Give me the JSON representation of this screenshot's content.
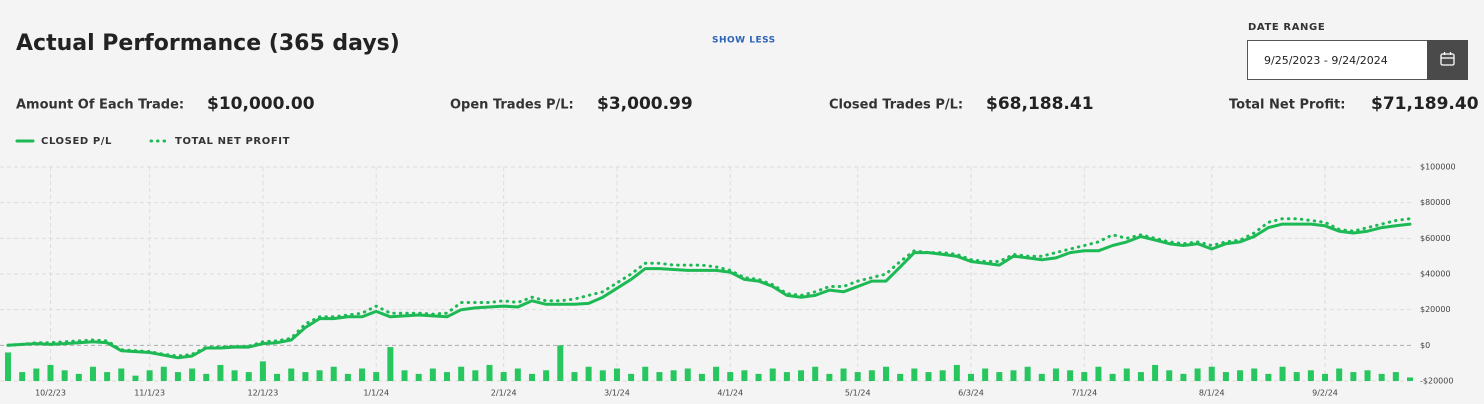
{
  "header": {
    "title": "Actual Performance (365 days)",
    "toggle": "SHOW LESS",
    "date_range_label": "DATE RANGE",
    "date_range": "9/25/2023 - 9/24/2024"
  },
  "stats": [
    {
      "label": "Amount Of Each Trade:",
      "value": "$10,000.00"
    },
    {
      "label": "Open Trades P/L:",
      "value": "$3,000.99"
    },
    {
      "label": "Closed Trades P/L:",
      "value": "$68,188.41"
    },
    {
      "label": "Total Net Profit:",
      "value": "$71,189.40"
    }
  ],
  "chart_data": {
    "type": "line",
    "grid": true,
    "categories": [
      null,
      null,
      null,
      "10/2/23",
      null,
      null,
      null,
      null,
      null,
      null,
      "11/1/23",
      null,
      null,
      null,
      null,
      null,
      null,
      null,
      "12/1/23",
      null,
      null,
      null,
      null,
      null,
      null,
      null,
      "1/1/24",
      null,
      null,
      null,
      null,
      null,
      null,
      null,
      null,
      "2/1/24",
      null,
      null,
      null,
      null,
      null,
      null,
      null,
      "3/1/24",
      null,
      null,
      null,
      null,
      null,
      null,
      null,
      "4/1/24",
      null,
      null,
      null,
      null,
      null,
      null,
      null,
      null,
      "5/1/24",
      null,
      null,
      null,
      null,
      null,
      null,
      null,
      "6/3/24",
      null,
      null,
      null,
      null,
      null,
      null,
      null,
      "7/1/24",
      null,
      null,
      null,
      null,
      null,
      null,
      null,
      null,
      "8/1/24",
      null,
      null,
      null,
      null,
      null,
      null,
      null,
      "9/2/24",
      null,
      null,
      null,
      null,
      null,
      null
    ],
    "ylim": [
      -20000,
      100000
    ],
    "yticks": [
      {
        "value": -20000,
        "label": "-$20000"
      },
      {
        "value": 0,
        "label": "$0"
      },
      {
        "value": 20000,
        "label": "$20000"
      },
      {
        "value": 40000,
        "label": "$40000"
      },
      {
        "value": 60000,
        "label": "$60000"
      },
      {
        "value": 80000,
        "label": "$80000"
      },
      {
        "value": 100000,
        "label": "$100000"
      }
    ],
    "series": [
      {
        "name": "CLOSED P/L",
        "color": "#1db954",
        "line_style": "solid",
        "values": [
          0,
          500,
          1000,
          500,
          1000,
          1500,
          2000,
          1500,
          -3000,
          -3500,
          -4000,
          -5500,
          -7000,
          -6000,
          -1500,
          -1500,
          -1000,
          -1000,
          1000,
          1500,
          3000,
          10000,
          15000,
          15000,
          16000,
          16000,
          19000,
          16000,
          16500,
          17000,
          16500,
          16000,
          20000,
          21000,
          21500,
          22000,
          21500,
          25000,
          23000,
          23000,
          23000,
          23500,
          27000,
          32000,
          37000,
          43000,
          43000,
          42500,
          42000,
          42000,
          42000,
          41000,
          37000,
          36000,
          33000,
          28000,
          27000,
          28000,
          31000,
          30000,
          33000,
          36000,
          36000,
          44000,
          52000,
          52000,
          51000,
          50000,
          47000,
          46000,
          45000,
          50000,
          49000,
          48000,
          49000,
          52000,
          53000,
          53000,
          56000,
          58000,
          61000,
          59000,
          57000,
          56000,
          57000,
          54000,
          57000,
          58000,
          61000,
          66000,
          68000,
          68000,
          68000,
          67000,
          64000,
          63000,
          64000,
          66000,
          67000,
          68000
        ]
      },
      {
        "name": "TOTAL NET PROFIT",
        "color": "#1db954",
        "line_style": "dotted",
        "values": [
          0,
          500,
          1500,
          1500,
          2000,
          2500,
          3000,
          2500,
          -2500,
          -3000,
          -3500,
          -5000,
          -6000,
          -5000,
          -1000,
          -1000,
          -500,
          -500,
          2000,
          2500,
          4000,
          12000,
          16000,
          16000,
          17000,
          18000,
          22000,
          18000,
          18000,
          18000,
          17500,
          18000,
          24000,
          24000,
          24000,
          25000,
          24000,
          27000,
          25000,
          25000,
          26000,
          28000,
          30000,
          35000,
          40000,
          46000,
          46000,
          45000,
          45000,
          45000,
          44000,
          42000,
          38000,
          37000,
          34000,
          29000,
          28000,
          30000,
          33000,
          33000,
          36000,
          38000,
          40000,
          47000,
          53000,
          52000,
          52000,
          51000,
          48000,
          47000,
          47000,
          51000,
          50000,
          50000,
          52000,
          54000,
          56000,
          58000,
          62000,
          60000,
          62000,
          60000,
          58000,
          57000,
          58000,
          56000,
          58000,
          59000,
          63000,
          69000,
          71000,
          71000,
          70000,
          69000,
          65000,
          64000,
          66000,
          68000,
          70000,
          71000
        ]
      },
      {
        "type": "bar",
        "color": "#27c65f",
        "values": [
          -4000,
          -15000,
          -13000,
          -11000,
          -14000,
          -16000,
          -12000,
          -15000,
          -13000,
          -17000,
          -14000,
          -12000,
          -15000,
          -13000,
          -16000,
          -11000,
          -14000,
          -15000,
          -9000,
          -16000,
          -13000,
          -15000,
          -14000,
          -12000,
          -16000,
          -13000,
          -15000,
          -1000,
          -14000,
          -16000,
          -13000,
          -15000,
          -12000,
          -14000,
          -11000,
          -15000,
          -13000,
          -16000,
          -14000,
          0,
          -15000,
          -12000,
          -14000,
          -13000,
          -16000,
          -12000,
          -15000,
          -14000,
          -13000,
          -16000,
          -12000,
          -15000,
          -14000,
          -16000,
          -13000,
          -15000,
          -14000,
          -12000,
          -16000,
          -13000,
          -15000,
          -14000,
          -12000,
          -16000,
          -13000,
          -15000,
          -14000,
          -11000,
          -16000,
          -13000,
          -15000,
          -14000,
          -12000,
          -16000,
          -13000,
          -14000,
          -15000,
          -12000,
          -16000,
          -13000,
          -15000,
          -11000,
          -14000,
          -16000,
          -13000,
          -12000,
          -15000,
          -14000,
          -13000,
          -16000,
          -12000,
          -15000,
          -14000,
          -16000,
          -13000,
          -15000,
          -14000,
          -16000,
          -15000,
          -18000
        ]
      }
    ]
  }
}
